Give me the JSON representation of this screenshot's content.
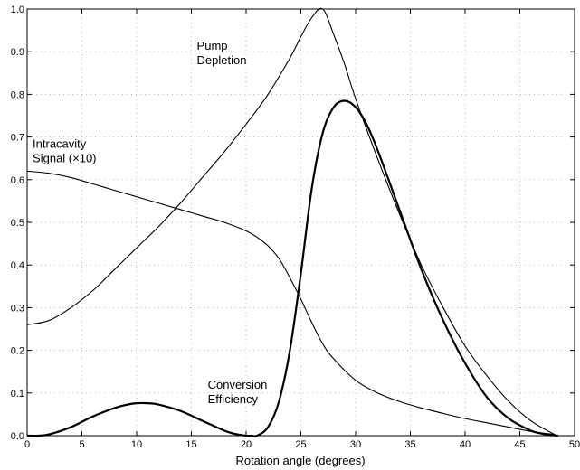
{
  "chart_data": {
    "type": "line",
    "title": "",
    "xlabel": "Rotation angle (degrees)",
    "ylabel": "",
    "xlim": [
      0,
      50
    ],
    "ylim": [
      0,
      1.0
    ],
    "xticks": [
      0,
      5,
      10,
      15,
      20,
      25,
      30,
      35,
      40,
      45,
      50
    ],
    "xtick_labels": [
      "0",
      "5",
      "10",
      "15",
      "20",
      "25",
      "30",
      "35",
      "40",
      "45",
      "50"
    ],
    "yticks": [
      0,
      0.1,
      0.2,
      0.3,
      0.4,
      0.5,
      0.6,
      0.7,
      0.8,
      0.9,
      1.0
    ],
    "ytick_labels": [
      "0.0",
      "0.1",
      "0.2",
      "0.3",
      "0.4",
      "0.5",
      "0.6",
      "0.7",
      "0.8",
      "0.9",
      "1.0"
    ],
    "grid": true,
    "series": [
      {
        "name": "Pump Depletion",
        "x": [
          0,
          2,
          4,
          6,
          8,
          10,
          12,
          14,
          16,
          18,
          20,
          22,
          24,
          25,
          26,
          27,
          28,
          29,
          30,
          32,
          34,
          36,
          38,
          40,
          42,
          44,
          46,
          48,
          48.5
        ],
        "y": [
          0.26,
          0.27,
          0.3,
          0.34,
          0.39,
          0.44,
          0.49,
          0.545,
          0.605,
          0.665,
          0.73,
          0.8,
          0.885,
          0.935,
          0.98,
          1.0,
          0.94,
          0.87,
          0.79,
          0.65,
          0.52,
          0.4,
          0.3,
          0.21,
          0.14,
          0.08,
          0.035,
          0.005,
          0.0
        ]
      },
      {
        "name": "Intracavity Signal (×10)",
        "x": [
          0,
          2,
          4,
          6,
          8,
          10,
          12,
          14,
          16,
          18,
          20,
          21,
          22,
          23,
          24,
          25,
          26,
          27,
          28,
          30,
          32,
          34,
          36,
          38,
          40,
          42,
          44,
          46,
          48,
          48.5
        ],
        "y": [
          0.62,
          0.615,
          0.605,
          0.59,
          0.575,
          0.56,
          0.545,
          0.53,
          0.515,
          0.5,
          0.48,
          0.465,
          0.445,
          0.415,
          0.37,
          0.32,
          0.265,
          0.215,
          0.18,
          0.13,
          0.1,
          0.08,
          0.065,
          0.052,
          0.04,
          0.03,
          0.02,
          0.01,
          0.003,
          0.0
        ]
      },
      {
        "name": "Conversion Efficiency",
        "x": [
          0,
          1,
          2,
          4,
          6,
          8,
          9,
          10,
          11,
          12,
          14,
          16,
          18,
          19,
          20,
          20.5,
          21,
          22,
          23,
          24,
          25,
          26,
          27,
          28,
          29,
          30,
          31,
          32,
          34,
          36,
          38,
          40,
          42,
          44,
          46,
          47,
          48,
          48.5
        ],
        "y": [
          0,
          0.0,
          0.003,
          0.02,
          0.045,
          0.065,
          0.072,
          0.076,
          0.076,
          0.073,
          0.058,
          0.035,
          0.012,
          0.004,
          0.0,
          0.0,
          0.0,
          0.02,
          0.08,
          0.2,
          0.38,
          0.58,
          0.71,
          0.77,
          0.785,
          0.77,
          0.73,
          0.67,
          0.53,
          0.39,
          0.27,
          0.17,
          0.09,
          0.04,
          0.012,
          0.005,
          0.001,
          0.0
        ],
        "bold": true
      }
    ],
    "annotations": [
      {
        "lines": [
          "Pump",
          "Depletion"
        ],
        "x": 15.5,
        "y": 0.905
      },
      {
        "lines": [
          "Intracavity",
          "Signal (×10)"
        ],
        "x": 0.5,
        "y": 0.675
      },
      {
        "lines": [
          "Conversion",
          "Efficiency"
        ],
        "x": 16.5,
        "y": 0.11
      }
    ]
  }
}
